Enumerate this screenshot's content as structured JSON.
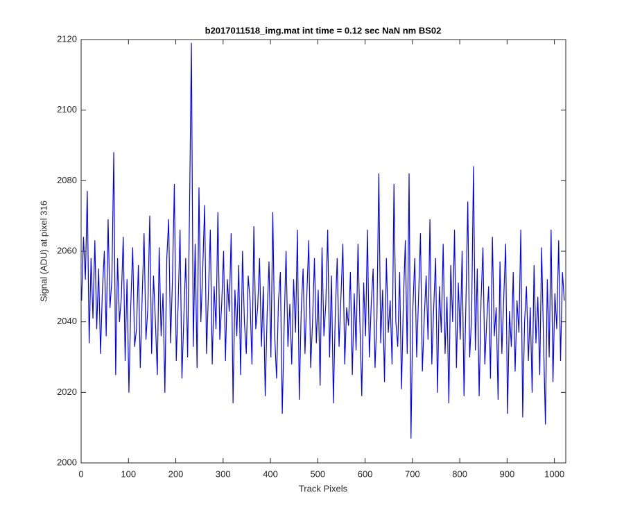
{
  "chart_data": {
    "type": "line",
    "title": "b2017011518_img.mat int time = 0.12 sec  NaN nm BS02",
    "xlabel": "Track Pixels",
    "ylabel": "Signal (ADU) at pixel 316",
    "xlim": [
      0,
      1024
    ],
    "xticks": [
      0,
      100,
      200,
      300,
      400,
      500,
      600,
      700,
      800,
      900,
      1000
    ],
    "ylim": [
      2000,
      2120
    ],
    "yticks": [
      2000,
      2020,
      2040,
      2060,
      2080,
      2100,
      2120
    ],
    "series": [
      {
        "color": "#0000ff",
        "x": [
          1,
          5,
          9,
          13,
          17,
          21,
          25,
          29,
          33,
          37,
          41,
          45,
          49,
          53,
          57,
          61,
          65,
          69,
          73,
          77,
          81,
          85,
          89,
          93,
          97,
          101,
          105,
          109,
          113,
          117,
          121,
          125,
          129,
          133,
          137,
          141,
          145,
          149,
          153,
          157,
          161,
          165,
          169,
          173,
          177,
          181,
          185,
          189,
          193,
          197,
          201,
          205,
          209,
          213,
          217,
          221,
          225,
          229,
          233,
          237,
          241,
          245,
          249,
          253,
          257,
          261,
          265,
          269,
          273,
          277,
          281,
          285,
          289,
          293,
          297,
          301,
          305,
          309,
          313,
          317,
          321,
          325,
          329,
          333,
          337,
          341,
          345,
          349,
          353,
          357,
          361,
          365,
          369,
          373,
          377,
          381,
          385,
          389,
          393,
          397,
          401,
          405,
          409,
          413,
          417,
          421,
          425,
          429,
          433,
          437,
          441,
          445,
          449,
          453,
          457,
          461,
          465,
          469,
          473,
          477,
          481,
          485,
          489,
          493,
          497,
          501,
          505,
          509,
          513,
          517,
          521,
          525,
          529,
          533,
          537,
          541,
          545,
          549,
          553,
          557,
          561,
          565,
          569,
          573,
          577,
          581,
          585,
          589,
          593,
          597,
          601,
          605,
          609,
          613,
          617,
          621,
          625,
          629,
          633,
          637,
          641,
          645,
          649,
          653,
          657,
          661,
          665,
          669,
          673,
          677,
          681,
          685,
          689,
          693,
          697,
          701,
          705,
          709,
          713,
          717,
          721,
          725,
          729,
          733,
          737,
          741,
          745,
          749,
          753,
          757,
          761,
          765,
          769,
          773,
          777,
          781,
          785,
          789,
          793,
          797,
          801,
          805,
          809,
          813,
          817,
          821,
          825,
          829,
          833,
          837,
          841,
          845,
          849,
          853,
          857,
          861,
          865,
          869,
          873,
          877,
          881,
          885,
          889,
          893,
          897,
          901,
          905,
          909,
          913,
          917,
          921,
          925,
          929,
          933,
          937,
          941,
          945,
          949,
          953,
          957,
          961,
          965,
          969,
          973,
          977,
          981,
          985,
          989,
          993,
          997,
          1001,
          1005,
          1009,
          1013,
          1017,
          1021
        ],
        "values": [
          2046,
          2064,
          2052,
          2077,
          2034,
          2058,
          2041,
          2063,
          2038,
          2055,
          2031,
          2049,
          2060,
          2036,
          2069,
          2044,
          2052,
          2088,
          2025,
          2058,
          2040,
          2047,
          2064,
          2029,
          2052,
          2020,
          2045,
          2061,
          2033,
          2038,
          2056,
          2027,
          2047,
          2065,
          2035,
          2044,
          2070,
          2031,
          2053,
          2040,
          2025,
          2061,
          2036,
          2048,
          2020,
          2058,
          2069,
          2034,
          2052,
          2079,
          2029,
          2045,
          2066,
          2024,
          2041,
          2058,
          2030,
          2071,
          2119,
          2033,
          2062,
          2027,
          2078,
          2040,
          2055,
          2073,
          2031,
          2048,
          2066,
          2028,
          2050,
          2038,
          2071,
          2035,
          2045,
          2060,
          2029,
          2052,
          2043,
          2065,
          2017,
          2049,
          2036,
          2056,
          2025,
          2060,
          2040,
          2031,
          2053,
          2046,
          2028,
          2067,
          2038,
          2044,
          2058,
          2033,
          2050,
          2019,
          2042,
          2057,
          2030,
          2071,
          2036,
          2024,
          2046,
          2054,
          2014,
          2039,
          2060,
          2033,
          2045,
          2028,
          2052,
          2037,
          2066,
          2018,
          2043,
          2055,
          2031,
          2048,
          2063,
          2027,
          2040,
          2058,
          2034,
          2049,
          2022,
          2061,
          2036,
          2045,
          2066,
          2030,
          2053,
          2017,
          2042,
          2058,
          2033,
          2047,
          2062,
          2028,
          2044,
          2039,
          2054,
          2025,
          2048,
          2032,
          2062,
          2040,
          2019,
          2051,
          2036,
          2066,
          2030,
          2045,
          2055,
          2027,
          2041,
          2082,
          2034,
          2049,
          2023,
          2058,
          2037,
          2046,
          2028,
          2079,
          2040,
          2033,
          2054,
          2021,
          2046,
          2063,
          2031,
          2082,
          2007,
          2044,
          2058,
          2030,
          2047,
          2065,
          2026,
          2041,
          2053,
          2035,
          2069,
          2028,
          2044,
          2058,
          2020,
          2050,
          2037,
          2062,
          2031,
          2047,
          2017,
          2056,
          2040,
          2066,
          2027,
          2051,
          2035,
          2060,
          2019,
          2045,
          2074,
          2030,
          2041,
          2084,
          2032,
          2055,
          2019,
          2046,
          2061,
          2028,
          2040,
          2050,
          2024,
          2064,
          2036,
          2044,
          2018,
          2057,
          2031,
          2047,
          2062,
          2014,
          2043,
          2033,
          2054,
          2026,
          2046,
          2037,
          2066,
          2013,
          2040,
          2050,
          2029,
          2044,
          2020,
          2056,
          2034,
          2047,
          2025,
          2061,
          2035,
          2011,
          2052,
          2030,
          2066,
          2023,
          2048,
          2038,
          2063,
          2029,
          2054,
          2046
        ]
      }
    ]
  }
}
